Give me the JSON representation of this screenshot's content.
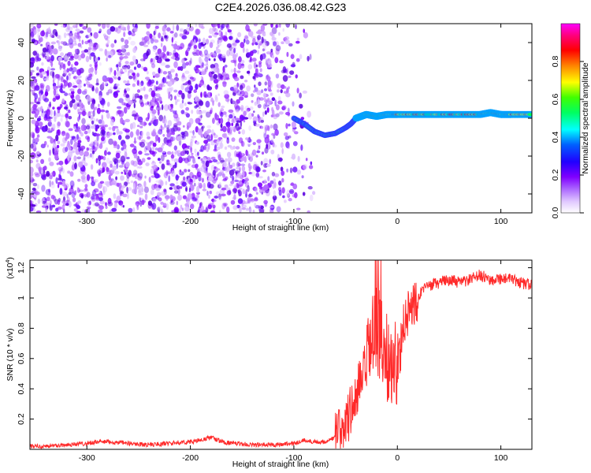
{
  "page": {
    "title": "C2E4.2026.036.08.42.G23"
  },
  "chart_data": [
    {
      "type": "heatmap",
      "title": "C2E4.2026.036.08.42.G23",
      "xlabel": "Height of straight line (km)",
      "ylabel": "Frequency (Hz)",
      "xlim": [
        -355,
        130
      ],
      "ylim": [
        -50,
        50
      ],
      "xticks": [
        -300,
        -200,
        -100,
        0,
        100
      ],
      "yticks": [
        -40,
        -20,
        0,
        20,
        40
      ],
      "colorbar": {
        "label": "Normalized spectral amplitude",
        "range": [
          0,
          1
        ],
        "ticks": [
          0.0,
          0.2,
          0.4,
          0.6,
          0.8
        ],
        "colormap": [
          "#ffffff",
          "#cc99ff",
          "#7f00ff",
          "#0000ff",
          "#00ffff",
          "#00ff00",
          "#ffff00",
          "#ff7f00",
          "#ff0000",
          "#ff00ff"
        ]
      },
      "noise_region": {
        "x_range": [
          -355,
          -90
        ],
        "color": "#7f00ff",
        "description_free": true
      },
      "signal_track": {
        "x": [
          -100,
          -90,
          -80,
          -70,
          -60,
          -50,
          -45,
          -40,
          -35,
          -30,
          -20,
          -10,
          0,
          20,
          40,
          60,
          80,
          90,
          100,
          110,
          130
        ],
        "y": [
          0,
          -3,
          -7,
          -9,
          -8,
          -5,
          -3,
          0,
          1,
          2,
          1,
          2,
          2,
          2,
          2,
          2,
          2,
          3,
          2,
          2,
          2
        ]
      },
      "grid": false
    },
    {
      "type": "line",
      "xlabel": "Height of straight line (km)",
      "ylabel": "SNR (10 * v/v)",
      "scale_label": "(x10^4)",
      "scale_prefix": "(x10",
      "scale_exp": "4",
      "scale_suffix": ")",
      "xlim": [
        -355,
        130
      ],
      "ylim": [
        0,
        1.25
      ],
      "xticks": [
        -300,
        -200,
        -100,
        0,
        100
      ],
      "yticks": [
        0.2,
        0.4,
        0.6,
        0.8,
        1.0,
        1.2
      ],
      "series": [
        {
          "color": "#ff2a2a",
          "x": [
            -355,
            -340,
            -320,
            -300,
            -290,
            -280,
            -260,
            -240,
            -220,
            -200,
            -190,
            -180,
            -170,
            -160,
            -140,
            -120,
            -100,
            -90,
            -80,
            -70,
            -60,
            -55,
            -50,
            -45,
            -40,
            -35,
            -30,
            -25,
            -20,
            -15,
            -10,
            -5,
            0,
            5,
            10,
            20,
            30,
            40,
            50,
            60,
            70,
            80,
            90,
            100,
            110,
            120,
            130
          ],
          "y": [
            0.02,
            0.02,
            0.03,
            0.04,
            0.05,
            0.05,
            0.04,
            0.03,
            0.04,
            0.05,
            0.06,
            0.08,
            0.05,
            0.04,
            0.03,
            0.03,
            0.04,
            0.06,
            0.05,
            0.05,
            0.08,
            0.12,
            0.18,
            0.25,
            0.35,
            0.45,
            0.55,
            0.7,
            0.8,
            0.7,
            0.6,
            0.55,
            0.6,
            0.75,
            0.9,
            1.02,
            1.08,
            1.1,
            1.12,
            1.1,
            1.12,
            1.15,
            1.12,
            1.13,
            1.12,
            1.1,
            1.08
          ]
        }
      ],
      "grid": false
    }
  ]
}
